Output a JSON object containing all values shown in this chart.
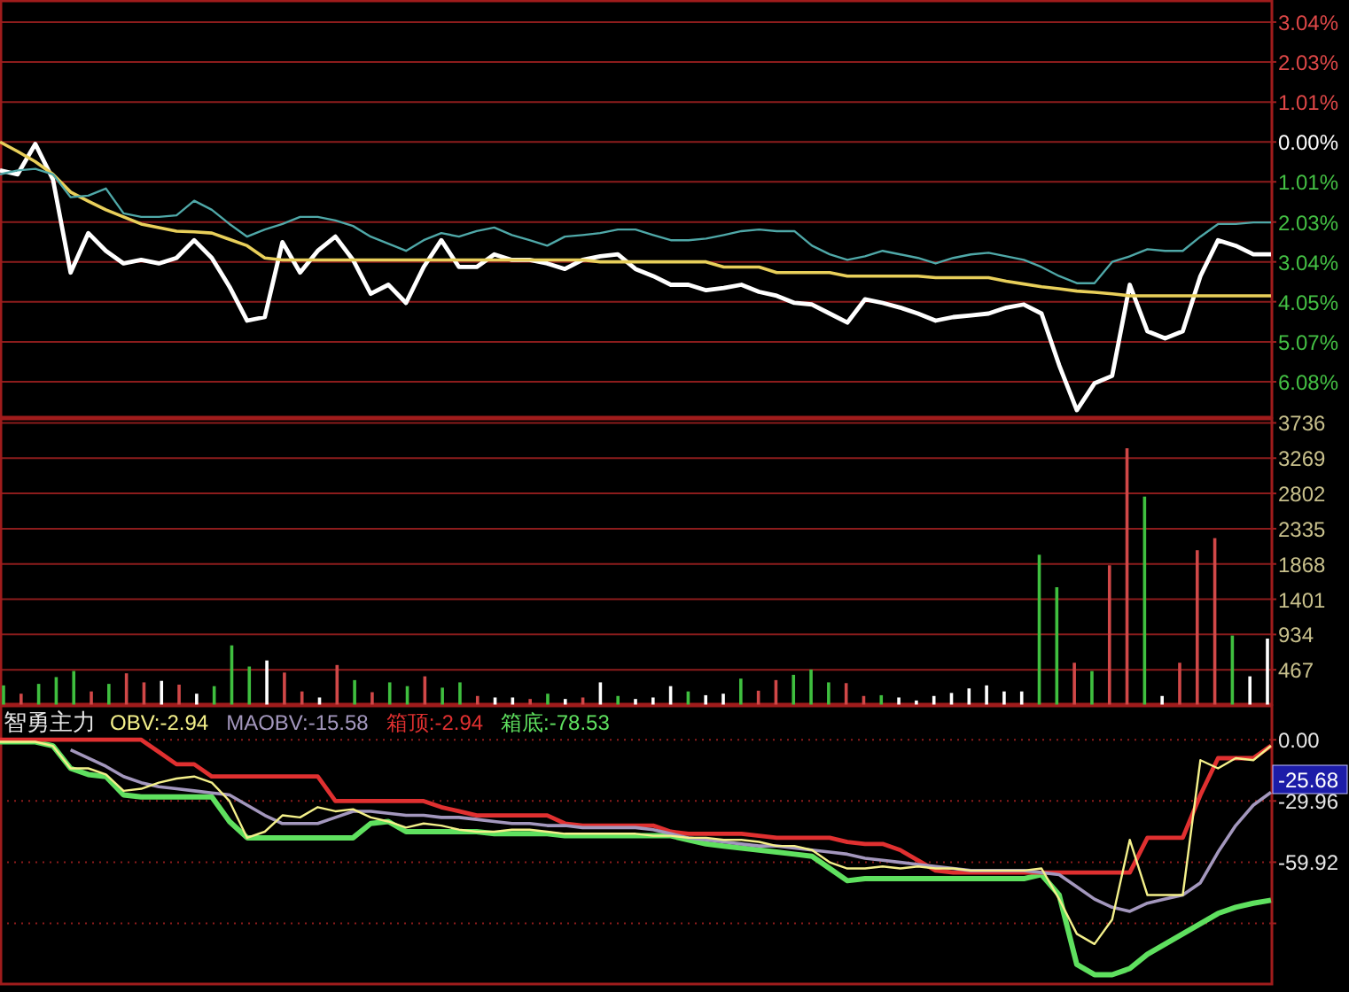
{
  "chart_data": [
    {
      "type": "line",
      "categories": [
        null,
        null,
        null,
        null,
        null,
        null,
        null,
        null,
        null,
        null,
        null,
        null,
        null,
        null,
        null,
        null,
        null,
        null,
        null,
        null,
        null,
        null,
        null,
        null,
        null,
        null,
        null,
        null,
        null,
        null,
        null,
        null,
        null,
        null,
        null,
        null,
        null,
        null,
        null,
        null,
        null,
        null,
        null,
        null,
        null,
        null,
        null,
        null,
        null,
        null,
        null,
        null,
        null,
        null,
        null,
        null,
        null,
        null,
        null,
        null,
        null,
        null,
        null,
        null,
        null,
        null,
        null,
        null,
        null,
        null,
        null,
        null,
        null
      ],
      "ylim": [
        -7.0,
        3.6
      ],
      "yticks": [
        {
          "value": 3.04,
          "label": "3.04%"
        },
        {
          "value": 2.03,
          "label": "2.03%"
        },
        {
          "value": 1.01,
          "label": "1.01%"
        },
        {
          "value": 0,
          "label": "0.00%"
        },
        {
          "value": -1.01,
          "label": "1.01%"
        },
        {
          "value": -2.03,
          "label": "2.03%"
        },
        {
          "value": -3.04,
          "label": "3.04%"
        },
        {
          "value": -4.05,
          "label": "4.05%"
        },
        {
          "value": -5.07,
          "label": "5.07%"
        },
        {
          "value": -6.08,
          "label": "6.08%"
        }
      ],
      "grid": "y",
      "series": [
        {
          "color": "#4fa8a8",
          "values": [
            -0.82,
            -0.72,
            -0.68,
            -0.82,
            -1.4,
            -1.36,
            -1.18,
            -1.81,
            -1.9,
            -1.9,
            -1.86,
            -1.49,
            -1.72,
            -2.08,
            -2.4,
            -2.22,
            -2.08,
            -1.9,
            -1.9,
            -1.99,
            -2.13,
            -2.4,
            -2.58,
            -2.76,
            -2.49,
            -2.31,
            -2.4,
            -2.26,
            -2.17,
            -2.36,
            -2.49,
            -2.63,
            -2.4,
            -2.36,
            -2.31,
            -2.22,
            -2.22,
            -2.36,
            -2.49,
            -2.49,
            -2.45,
            -2.36,
            -2.26,
            -2.22,
            -2.26,
            -2.26,
            -2.63,
            -2.85,
            -2.99,
            -2.9,
            -2.76,
            -2.85,
            -2.94,
            -3.08,
            -2.94,
            -2.85,
            -2.81,
            -2.9,
            -2.99,
            -3.17,
            -3.4,
            -3.58,
            -3.58,
            -3.04,
            -2.9,
            -2.72,
            -2.76,
            -2.76,
            -2.4,
            -2.08,
            -2.08,
            -2.04,
            -2.04
          ]
        },
        {
          "color": "#e8cf5a",
          "values": [
            0.0,
            -0.24,
            -0.5,
            -0.82,
            -1.27,
            -1.5,
            -1.72,
            -1.9,
            -2.08,
            -2.17,
            -2.26,
            -2.28,
            -2.31,
            -2.47,
            -2.63,
            -2.94,
            -2.99,
            -2.99,
            -2.99,
            -2.99,
            -2.99,
            -2.99,
            -2.99,
            -2.99,
            -2.99,
            -2.99,
            -2.99,
            -2.99,
            -2.99,
            -2.99,
            -2.99,
            -2.99,
            -2.99,
            -2.99,
            -3.04,
            -3.04,
            -3.04,
            -3.04,
            -3.04,
            -3.04,
            -3.04,
            -3.17,
            -3.17,
            -3.17,
            -3.31,
            -3.31,
            -3.31,
            -3.31,
            -3.4,
            -3.4,
            -3.4,
            -3.4,
            -3.4,
            -3.44,
            -3.44,
            -3.44,
            -3.44,
            -3.53,
            -3.6,
            -3.67,
            -3.72,
            -3.78,
            -3.81,
            -3.85,
            -3.9,
            -3.9,
            -3.9,
            -3.9,
            -3.9,
            -3.9,
            -3.9,
            -3.9,
            -3.9
          ]
        },
        {
          "color": "#ffffff",
          "values": [
            -0.72,
            -0.82,
            -0.05,
            -0.95,
            -3.31,
            -2.31,
            -2.76,
            -3.08,
            -2.99,
            -3.08,
            -2.94,
            -2.49,
            -2.94,
            -3.67,
            -4.53,
            -4.44,
            -2.54,
            -3.31,
            -2.76,
            -2.4,
            -2.99,
            -3.85,
            -3.62,
            -4.08,
            -3.17,
            -2.49,
            -3.17,
            -3.17,
            -2.85,
            -2.99,
            -2.99,
            -3.08,
            -3.22,
            -2.99,
            -2.9,
            -2.85,
            -3.22,
            -3.4,
            -3.62,
            -3.62,
            -3.76,
            -3.7,
            -3.62,
            -3.8,
            -3.9,
            -4.08,
            -4.12,
            -4.35,
            -4.58,
            -3.99,
            -4.08,
            -4.2,
            -4.35,
            -4.53,
            -4.44,
            -4.4,
            -4.35,
            -4.2,
            -4.12,
            -4.35,
            -5.66,
            -6.8,
            -6.12,
            -5.93,
            -3.62,
            -4.8,
            -4.98,
            -4.8,
            -3.4,
            -2.49,
            -2.63,
            -2.85,
            -2.85
          ]
        }
      ]
    },
    {
      "type": "bar",
      "categories": [
        null,
        null,
        null,
        null,
        null,
        null,
        null,
        null,
        null,
        null,
        null,
        null,
        null,
        null,
        null,
        null,
        null,
        null,
        null,
        null,
        null,
        null,
        null,
        null,
        null,
        null,
        null,
        null,
        null,
        null,
        null,
        null,
        null,
        null,
        null,
        null,
        null,
        null,
        null,
        null,
        null,
        null,
        null,
        null,
        null,
        null,
        null,
        null,
        null,
        null,
        null,
        null,
        null,
        null,
        null,
        null,
        null,
        null,
        null,
        null,
        null,
        null,
        null,
        null,
        null,
        null,
        null,
        null,
        null,
        null,
        null,
        null,
        null
      ],
      "ylim": [
        0,
        3800
      ],
      "yticks": [
        467,
        934,
        1401,
        1868,
        2335,
        2802,
        3269,
        3736
      ],
      "grid": "y",
      "values": [
        260,
        150,
        280,
        370,
        450,
        180,
        280,
        420,
        300,
        320,
        270,
        150,
        250,
        790,
        510,
        590,
        430,
        180,
        100,
        530,
        330,
        170,
        300,
        250,
        380,
        230,
        300,
        120,
        100,
        100,
        80,
        150,
        80,
        100,
        300,
        120,
        80,
        100,
        250,
        180,
        130,
        150,
        350,
        190,
        330,
        400,
        470,
        300,
        290,
        120,
        130,
        100,
        60,
        120,
        160,
        220,
        260,
        180,
        180,
        1990,
        1560,
        560,
        450,
        1850,
        3400,
        2760,
        120,
        560,
        2050,
        2210,
        920,
        380,
        880
      ],
      "colors": [
        "#3fbf3f",
        "#d04848",
        "#3fbf3f",
        "#3fbf3f",
        "#3fbf3f",
        "#d04848",
        "#3fbf3f",
        "#d04848",
        "#d04848",
        "#ffffff",
        "#d04848",
        "#ffffff",
        "#3fbf3f",
        "#3fbf3f",
        "#3fbf3f",
        "#ffffff",
        "#d04848",
        "#d04848",
        "#ffffff",
        "#d04848",
        "#3fbf3f",
        "#d04848",
        "#3fbf3f",
        "#3fbf3f",
        "#d04848",
        "#3fbf3f",
        "#3fbf3f",
        "#d04848",
        "#ffffff",
        "#ffffff",
        "#d04848",
        "#3fbf3f",
        "#ffffff",
        "#d04848",
        "#ffffff",
        "#3fbf3f",
        "#ffffff",
        "#ffffff",
        "#ffffff",
        "#3fbf3f",
        "#ffffff",
        "#ffffff",
        "#3fbf3f",
        "#d04848",
        "#d04848",
        "#3fbf3f",
        "#3fbf3f",
        "#3fbf3f",
        "#d04848",
        "#d04848",
        "#3fbf3f",
        "#ffffff",
        "#ffffff",
        "#ffffff",
        "#ffffff",
        "#ffffff",
        "#ffffff",
        "#ffffff",
        "#ffffff",
        "#3fbf3f",
        "#3fbf3f",
        "#d04848",
        "#3fbf3f",
        "#d04848",
        "#d04848",
        "#3fbf3f",
        "#ffffff",
        "#d04848",
        "#d04848",
        "#d04848",
        "#3fbf3f",
        "#ffffff",
        "#ffffff"
      ]
    },
    {
      "type": "line",
      "title": "智勇主力",
      "legend": "top left",
      "categories": [
        null,
        null,
        null,
        null,
        null,
        null,
        null,
        null,
        null,
        null,
        null,
        null,
        null,
        null,
        null,
        null,
        null,
        null,
        null,
        null,
        null,
        null,
        null,
        null,
        null,
        null,
        null,
        null,
        null,
        null,
        null,
        null,
        null,
        null,
        null,
        null,
        null,
        null,
        null,
        null,
        null,
        null,
        null,
        null,
        null,
        null,
        null,
        null,
        null,
        null,
        null,
        null,
        null,
        null,
        null,
        null,
        null,
        null,
        null,
        null,
        null,
        null,
        null,
        null,
        null,
        null,
        null,
        null,
        null,
        null,
        null,
        null,
        null
      ],
      "ylim": [
        -120,
        17
      ],
      "yticks": [
        {
          "value": 0,
          "label": "0.00"
        },
        -29.96,
        -59.92,
        {
          "value": -89.88,
          "label": null
        }
      ],
      "grid": "y",
      "annotations": [
        "-25.68"
      ],
      "series": [
        {
          "name": "OBV:-2.94",
          "color": "#f4f08a",
          "values": [
            -1,
            -1,
            -1,
            -3,
            -14,
            -14,
            -17,
            -25,
            -24,
            -21,
            -19,
            -18,
            -21,
            -30,
            -48,
            -45,
            -37,
            -38,
            -33,
            -35,
            -34,
            -38,
            -40,
            -43,
            -41,
            -42,
            -44,
            -45,
            -45,
            -44,
            -44,
            -45,
            -46,
            -46,
            -46,
            -46,
            -46,
            -47,
            -47,
            -48,
            -48,
            -49,
            -49,
            -50,
            -52,
            -52,
            -54,
            -60,
            -63,
            -63,
            -62,
            -63,
            -62,
            -63,
            -63,
            -64,
            -64,
            -64,
            -64,
            -63,
            -78,
            -95,
            -100,
            -88,
            -49,
            -76,
            -76,
            -76,
            -10,
            -14,
            -9,
            -10,
            -2.94
          ]
        },
        {
          "name": "MAOBV:-15.58",
          "color": "#a397bd",
          "values": [
            null,
            null,
            null,
            null,
            -5,
            -9,
            -13,
            -18,
            -21,
            -23,
            -24,
            -25,
            -26,
            -27,
            -32,
            -37,
            -41,
            -41,
            -41,
            -38,
            -35,
            -35,
            -36,
            -37,
            -37,
            -38,
            -38,
            -39,
            -40,
            -41,
            -41,
            -42,
            -42,
            -43,
            -43,
            -43,
            -43,
            -44,
            -46,
            -48,
            -49,
            -50,
            -51,
            -52,
            -52,
            -53,
            -54,
            -55,
            -56,
            -58,
            -59,
            -60,
            -61,
            -62,
            -63,
            -64,
            -64,
            -64,
            -64,
            -65,
            -66,
            -72,
            -78,
            -82,
            -84,
            -80,
            -78,
            -76,
            -70,
            -55,
            -42,
            -32,
            -25.68
          ]
        },
        {
          "name": "箱顶:-2.94",
          "color": "#e03030",
          "values": [
            0,
            0,
            0,
            0,
            0,
            0,
            0,
            0,
            0,
            -6,
            -12,
            -12,
            -18,
            -18,
            -18,
            -18,
            -18,
            -18,
            -18,
            -30,
            -30,
            -30,
            -30,
            -30,
            -30,
            -33,
            -35,
            -37,
            -37,
            -37,
            -37,
            -37,
            -41,
            -42,
            -42,
            -42,
            -42,
            -42,
            -45,
            -46,
            -46,
            -46,
            -46,
            -47,
            -48,
            -48,
            -48,
            -48,
            -50,
            -51,
            -51,
            -54,
            -59,
            -64,
            -65,
            -65,
            -65,
            -65,
            -65,
            -65,
            -65,
            -65,
            -65,
            -65,
            -65,
            -48,
            -48,
            -48,
            -27,
            -9,
            -9,
            -9,
            -2.94
          ]
        },
        {
          "name": "箱底:-78.53",
          "color": "#5fe05f",
          "values": [
            -1,
            -1,
            -1,
            -3,
            -14,
            -17,
            -18,
            -27,
            -28,
            -28,
            -28,
            -28,
            -28,
            -40,
            -48,
            -48,
            -48,
            -48,
            -48,
            -48,
            -48,
            -41,
            -40,
            -45,
            -45,
            -45,
            -45,
            -45,
            -46,
            -46,
            -46,
            -46,
            -47,
            -47,
            -47,
            -47,
            -47,
            -47,
            -47,
            -49,
            -51,
            -52,
            -53,
            -54,
            -55,
            -56,
            -57,
            -63,
            -69,
            -68,
            -68,
            -68,
            -68,
            -68,
            -68,
            -68,
            -68,
            -68,
            -68,
            -66,
            -76,
            -110,
            -115,
            -115,
            -112,
            -105,
            -100,
            -95,
            -90,
            -85,
            -82,
            -80,
            -78.53
          ]
        }
      ]
    }
  ]
}
